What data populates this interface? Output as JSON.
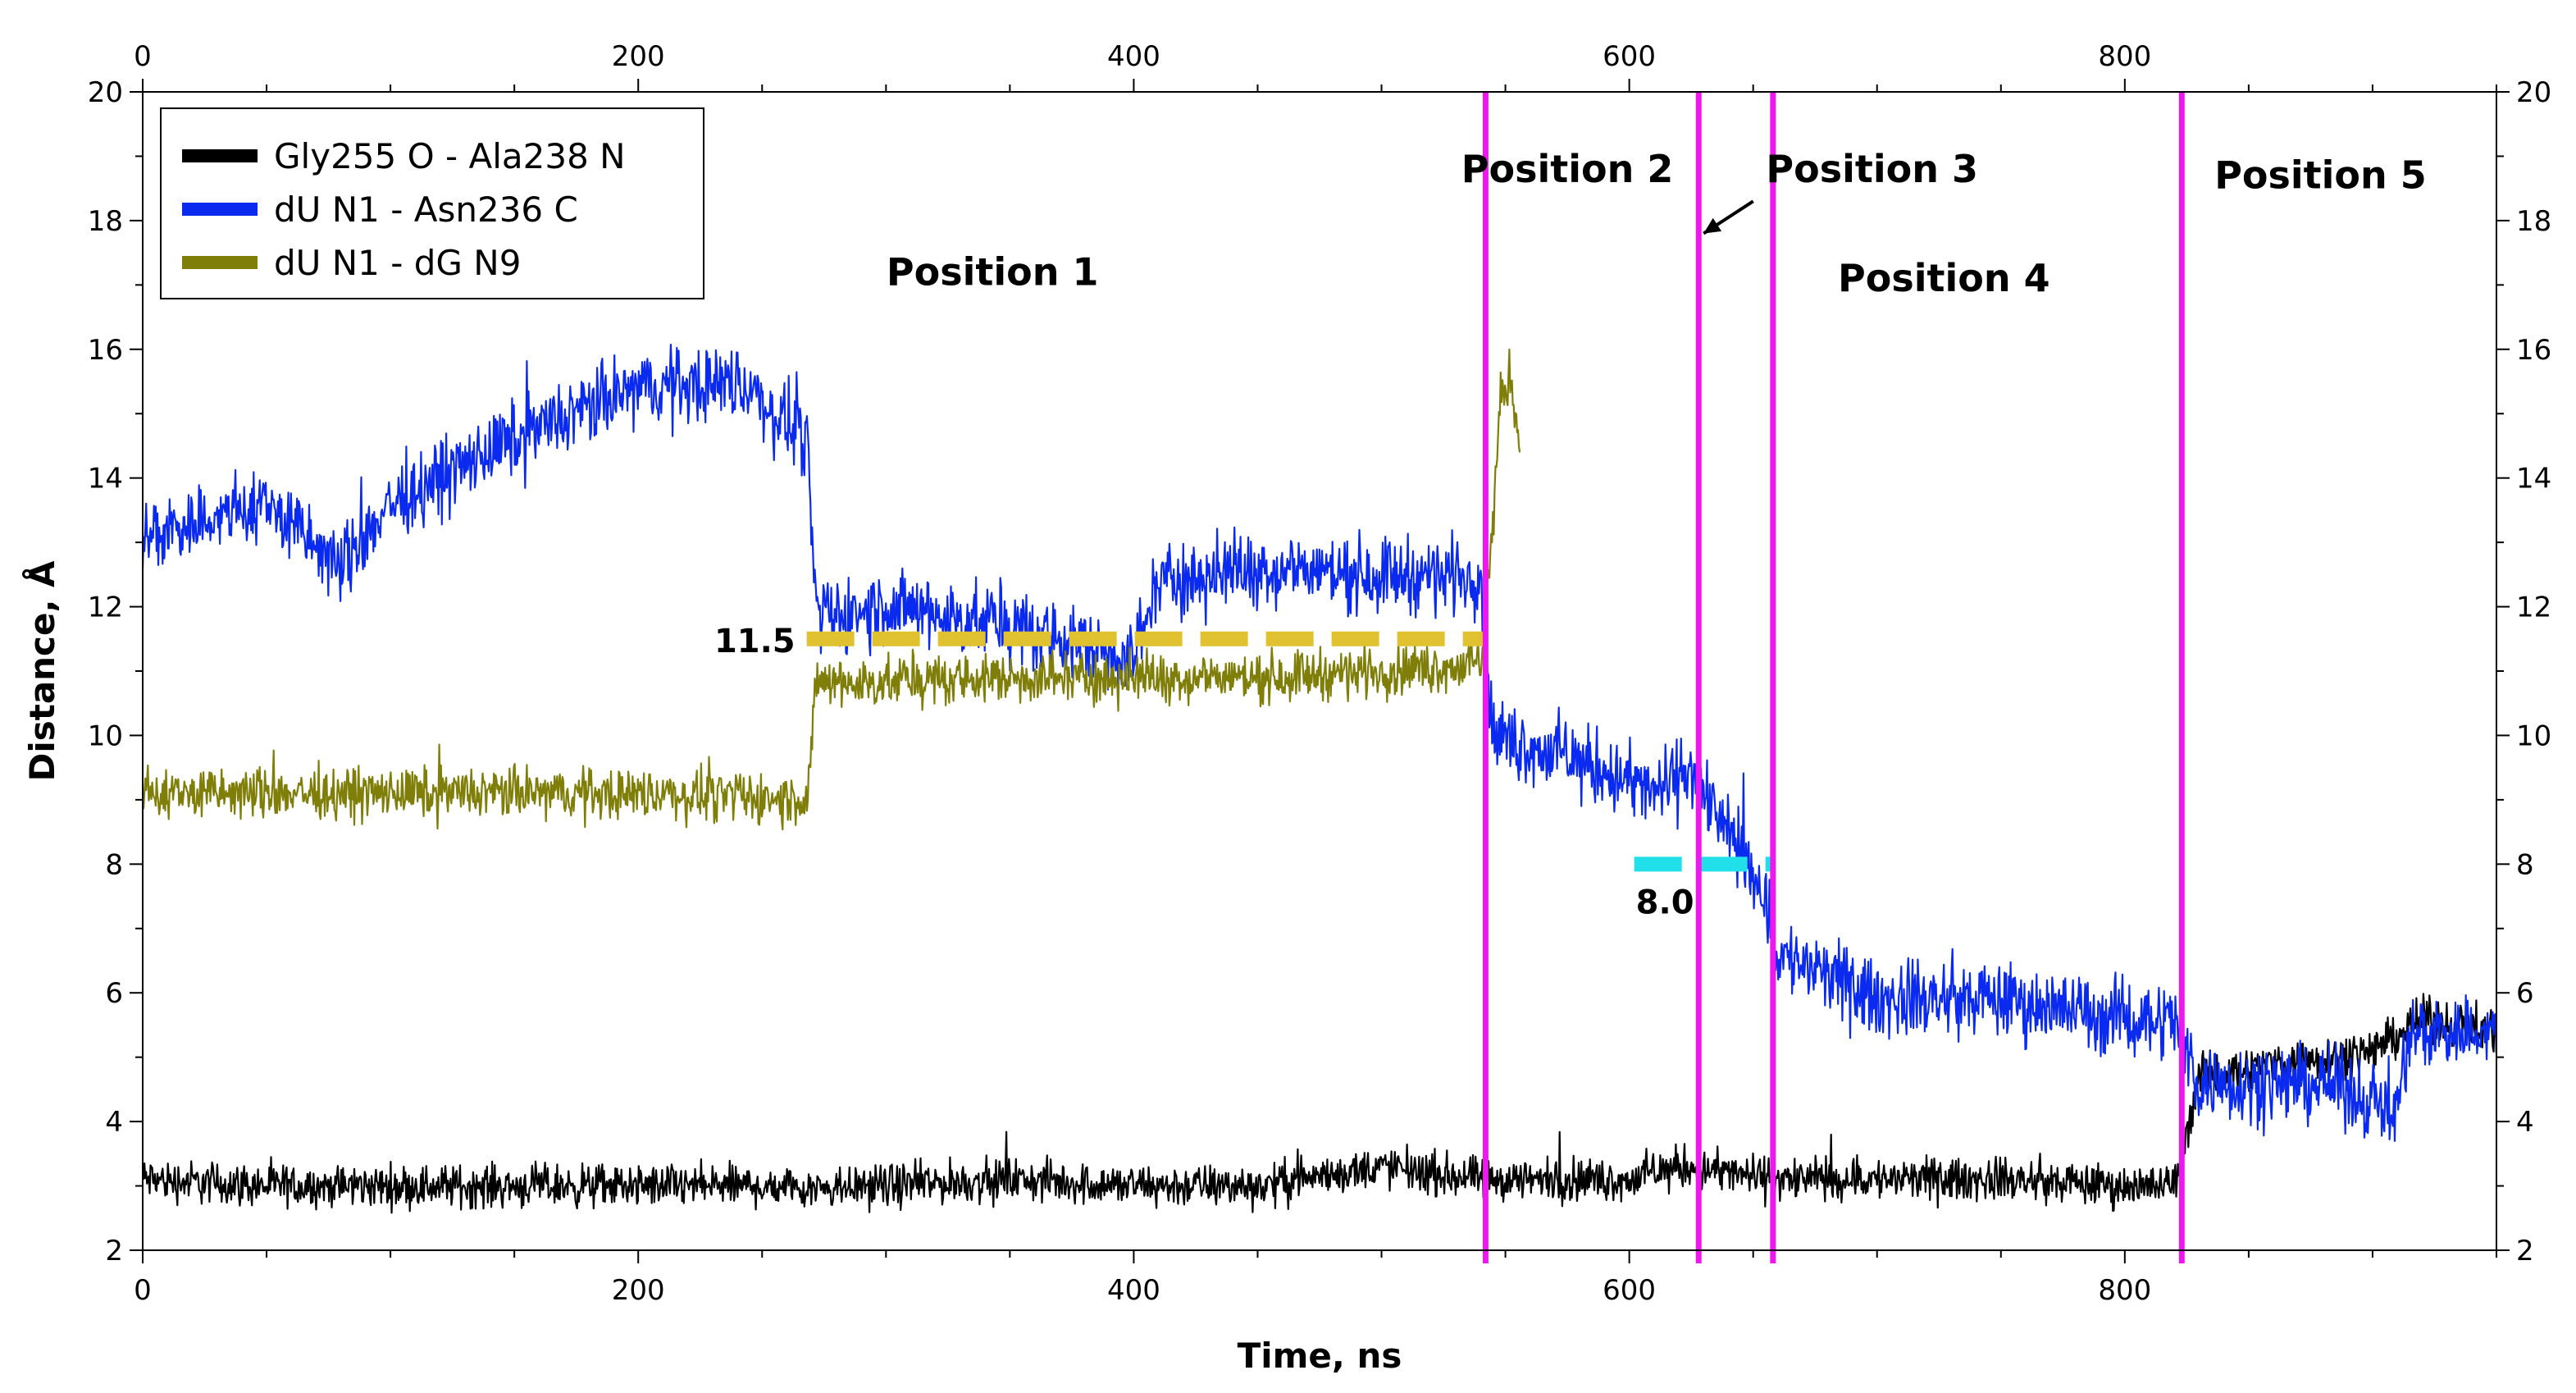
{
  "chart_data": {
    "type": "line",
    "title": "",
    "xlabel": "Time, ns",
    "ylabel": "Distance, Å",
    "xlim": [
      0,
      950
    ],
    "ylim": [
      2,
      20
    ],
    "x_ticks": [
      0,
      200,
      400,
      600,
      800
    ],
    "x_tick_labels": [
      "0",
      "200",
      "400",
      "600",
      "800"
    ],
    "y_ticks": [
      2,
      4,
      6,
      8,
      10,
      12,
      14,
      16,
      18,
      20
    ],
    "y_tick_labels": [
      "2",
      "4",
      "6",
      "8",
      "10",
      "12",
      "14",
      "16",
      "18",
      "20"
    ],
    "grid": false,
    "legend_position": "top-left",
    "series": [
      {
        "name": "Gly255 O - Ala238 N",
        "color": "#000000",
        "x": [
          0,
          50,
          100,
          150,
          200,
          250,
          300,
          350,
          400,
          450,
          500,
          540,
          600,
          620,
          660,
          700,
          750,
          800,
          820,
          830,
          860,
          900,
          920,
          950
        ],
        "y": [
          3.1,
          3.0,
          3.0,
          3.0,
          3.0,
          3.0,
          3.0,
          3.1,
          3.0,
          3.0,
          3.3,
          3.1,
          3.1,
          3.3,
          3.1,
          3.1,
          3.1,
          3.0,
          3.0,
          4.7,
          4.9,
          5.1,
          5.6,
          5.4
        ],
        "noise": 0.25
      },
      {
        "name": "dU N1 - Asn236 C",
        "color": "#0b2af0",
        "x": [
          0,
          50,
          80,
          100,
          150,
          200,
          240,
          268,
          272,
          300,
          350,
          400,
          410,
          450,
          500,
          540,
          545,
          580,
          610,
          625,
          640,
          650,
          660,
          700,
          750,
          800,
          820,
          830,
          880,
          910,
          915,
          950
        ],
        "y": [
          13.1,
          13.6,
          12.6,
          13.6,
          14.6,
          15.4,
          15.5,
          14.6,
          11.8,
          12.0,
          11.7,
          11.2,
          12.4,
          12.6,
          12.5,
          12.5,
          10.0,
          9.6,
          9.1,
          9.5,
          8.4,
          8.0,
          6.6,
          5.9,
          5.9,
          5.6,
          5.6,
          4.6,
          4.6,
          4.2,
          5.4,
          5.4
        ],
        "noise": 0.45
      },
      {
        "name": "dU N1 - dG N9",
        "color": "#7f7e08",
        "x": [
          0,
          100,
          200,
          268,
          272,
          350,
          450,
          540,
          544,
          548,
          552,
          556
        ],
        "y": [
          9.1,
          9.1,
          9.1,
          9.0,
          10.8,
          10.9,
          10.9,
          11.1,
          12.8,
          15.2,
          15.6,
          14.4
        ],
        "noise": 0.3
      }
    ],
    "vertical_lines": [
      {
        "x": 542,
        "color": "#ee18ee"
      },
      {
        "x": 628,
        "color": "#ee18ee"
      },
      {
        "x": 658,
        "color": "#ee18ee"
      },
      {
        "x": 823,
        "color": "#ee18ee"
      }
    ],
    "reference_lines": [
      {
        "label": "11.5",
        "value": 11.5,
        "x_range": [
          268,
          543
        ],
        "color": "#e0c230"
      },
      {
        "label": "8.0",
        "value": 8.0,
        "x_range": [
          602,
          658
        ],
        "color": "#22e0ea"
      }
    ],
    "annotations": [
      {
        "text": "Position 1",
        "x": 343,
        "y": 17.0
      },
      {
        "text": "Position 2",
        "x": 575,
        "y": 18.6
      },
      {
        "text": "Position 3",
        "x": 698,
        "y": 18.6
      },
      {
        "text": "Position 4",
        "x": 727,
        "y": 16.9
      },
      {
        "text": "Position 5",
        "x": 879,
        "y": 18.5
      }
    ],
    "arrow": {
      "from": [
        650,
        18.3
      ],
      "to": [
        630,
        17.8
      ]
    }
  }
}
